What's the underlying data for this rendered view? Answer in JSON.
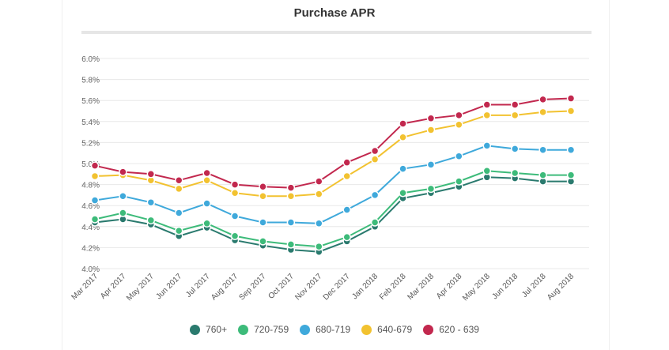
{
  "chart_data": {
    "type": "line",
    "title": "Purchase APR",
    "xlabel": "",
    "ylabel": "",
    "ylim": [
      4.0,
      6.0
    ],
    "yticks": [
      "4.0%",
      "4.2%",
      "4.4%",
      "4.6%",
      "4.8%",
      "5.0%",
      "5.2%",
      "5.4%",
      "5.6%",
      "5.8%",
      "6.0%"
    ],
    "grid": true,
    "legend": "bottom",
    "categories": [
      "Mar 2017",
      "Apr 2017",
      "May 2017",
      "Jun 2017",
      "Jul 2017",
      "Aug 2017",
      "Sep 2017",
      "Oct 2017",
      "Nov 2017",
      "Dec 2017",
      "Jan 2018",
      "Feb 2018",
      "Mar 2018",
      "Apr 2018",
      "May 2018",
      "Jun 2018",
      "Jul 2018",
      "Aug 2018"
    ],
    "series": [
      {
        "name": "760+",
        "color": "#2a7a6e",
        "values": [
          4.44,
          4.47,
          4.42,
          4.31,
          4.39,
          4.27,
          4.22,
          4.18,
          4.16,
          4.26,
          4.4,
          4.67,
          4.72,
          4.78,
          4.87,
          4.86,
          4.83,
          4.83
        ]
      },
      {
        "name": "720-759",
        "color": "#3dbb7a",
        "values": [
          4.47,
          4.53,
          4.46,
          4.36,
          4.43,
          4.31,
          4.26,
          4.23,
          4.21,
          4.3,
          4.44,
          4.72,
          4.76,
          4.83,
          4.93,
          4.91,
          4.89,
          4.89
        ]
      },
      {
        "name": "680-719",
        "color": "#3fa9db",
        "values": [
          4.65,
          4.69,
          4.63,
          4.53,
          4.62,
          4.5,
          4.44,
          4.44,
          4.43,
          4.56,
          4.7,
          4.95,
          4.99,
          5.07,
          5.17,
          5.14,
          5.13,
          5.13
        ]
      },
      {
        "name": "640-679",
        "color": "#f2c230",
        "values": [
          4.88,
          4.89,
          4.84,
          4.76,
          4.84,
          4.72,
          4.69,
          4.69,
          4.71,
          4.88,
          5.04,
          5.25,
          5.32,
          5.37,
          5.46,
          5.46,
          5.49,
          5.5
        ]
      },
      {
        "name": "620 - 639",
        "color": "#c2284e",
        "values": [
          4.98,
          4.92,
          4.9,
          4.84,
          4.91,
          4.8,
          4.78,
          4.77,
          4.83,
          5.01,
          5.12,
          5.38,
          5.43,
          5.46,
          5.56,
          5.56,
          5.61,
          5.62
        ]
      }
    ]
  }
}
